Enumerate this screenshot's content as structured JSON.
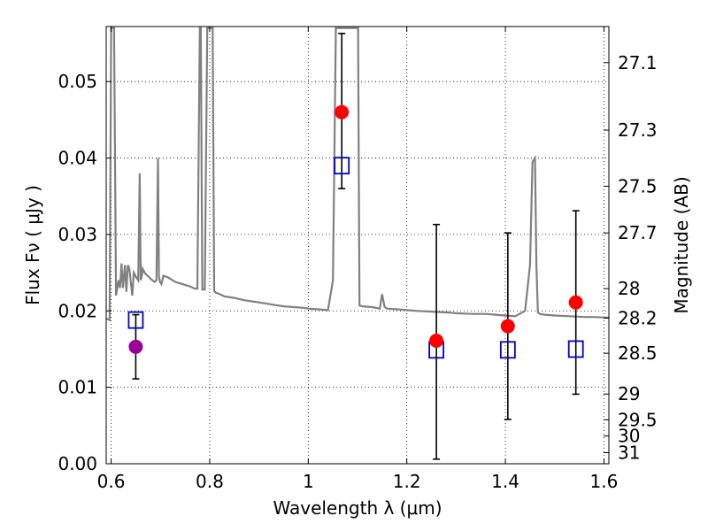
{
  "chart_data": {
    "type": "scatter",
    "xlabel": "Wavelength  λ (μm)",
    "ylabel": "Flux  Fν  ( μJy )",
    "y2label": "Magnitude (AB)",
    "xlim": [
      0.59,
      1.61
    ],
    "ylim": [
      0.0,
      0.0572
    ],
    "grid": true,
    "x_ticks": [
      0.6,
      0.8,
      1.0,
      1.2,
      1.4,
      1.6
    ],
    "x_tick_labels": [
      "0.6",
      "0.8",
      "1",
      "1.2",
      "1.4",
      "1.6"
    ],
    "y_ticks": [
      0.0,
      0.01,
      0.02,
      0.03,
      0.04,
      0.05
    ],
    "y_tick_labels": [
      "0.00",
      "0.01",
      "0.02",
      "0.03",
      "0.04",
      "0.05"
    ],
    "mag_ticks": [
      27.1,
      27.3,
      27.5,
      27.7,
      28.0,
      28.2,
      28.5,
      29.0,
      29.5,
      30.0,
      31.0
    ],
    "mag_tick_labels": [
      "27.1",
      "27.3",
      "27.5",
      "27.7",
      "28",
      "28.2",
      "28.5",
      "29",
      "29.5",
      "30",
      "31"
    ],
    "colors": {
      "model": "#808080",
      "observed": "#ff0000",
      "limit": "#990099",
      "model_flux": "#0000cc",
      "errorbar": "#000000"
    },
    "model_spectrum": {
      "x": [
        0.59,
        0.597,
        0.6,
        0.603,
        0.606,
        0.61,
        0.615,
        0.618,
        0.621,
        0.624,
        0.628,
        0.631,
        0.634,
        0.637,
        0.64,
        0.643,
        0.646,
        0.65,
        0.655,
        0.658,
        0.66,
        0.662,
        0.664,
        0.668,
        0.672,
        0.676,
        0.68,
        0.684,
        0.688,
        0.692,
        0.695,
        0.697,
        0.699,
        0.702,
        0.706,
        0.71,
        0.715,
        0.72,
        0.73,
        0.74,
        0.75,
        0.76,
        0.77,
        0.775,
        0.78,
        0.782,
        0.785,
        0.79,
        0.795,
        0.8,
        0.803,
        0.806,
        0.809,
        0.812,
        0.82,
        0.83,
        0.85,
        0.87,
        0.89,
        0.91,
        0.93,
        0.95,
        0.97,
        0.99,
        1.0,
        1.02,
        1.04,
        1.05,
        1.056,
        1.062,
        1.068,
        1.074,
        1.08,
        1.086,
        1.092,
        1.098,
        1.101,
        1.104,
        1.11,
        1.13,
        1.145,
        1.15,
        1.155,
        1.16,
        1.18,
        1.2,
        1.22,
        1.25,
        1.28,
        1.3,
        1.33,
        1.36,
        1.38,
        1.4,
        1.42,
        1.44,
        1.45,
        1.455,
        1.46,
        1.463,
        1.466,
        1.47,
        1.48,
        1.5,
        1.53,
        1.56,
        1.58,
        1.61
      ],
      "y": [
        0.019,
        0.0188,
        0.057,
        0.057,
        0.057,
        0.022,
        0.024,
        0.023,
        0.0262,
        0.023,
        0.026,
        0.0225,
        0.026,
        0.0255,
        0.0238,
        0.022,
        0.025,
        0.0245,
        0.024,
        0.038,
        0.024,
        0.0245,
        0.0255,
        0.025,
        0.0247,
        0.0245,
        0.0242,
        0.024,
        0.0238,
        0.024,
        0.04,
        0.0245,
        0.0238,
        0.0235,
        0.0246,
        0.0245,
        0.0244,
        0.0242,
        0.0238,
        0.0236,
        0.0234,
        0.0232,
        0.0229,
        0.0229,
        0.057,
        0.057,
        0.0228,
        0.0228,
        0.057,
        0.057,
        0.057,
        0.057,
        0.0226,
        0.0224,
        0.0222,
        0.0219,
        0.0217,
        0.0214,
        0.0212,
        0.021,
        0.0208,
        0.0206,
        0.0205,
        0.0204,
        0.0203,
        0.0202,
        0.0201,
        0.024,
        0.057,
        0.057,
        0.057,
        0.057,
        0.057,
        0.057,
        0.057,
        0.057,
        0.057,
        0.0207,
        0.0206,
        0.0205,
        0.0203,
        0.0222,
        0.0205,
        0.0203,
        0.0202,
        0.0201,
        0.02,
        0.0199,
        0.0198,
        0.0197,
        0.0196,
        0.0196,
        0.0195,
        0.0194,
        0.0193,
        0.02,
        0.026,
        0.0395,
        0.04,
        0.026,
        0.0198,
        0.0196,
        0.0195,
        0.0194,
        0.0193,
        0.0192,
        0.0192,
        0.0191
      ]
    },
    "observed": [
      {
        "x": 1.068,
        "y": 0.046,
        "yerr_low": 0.036,
        "yerr_high": 0.0563
      },
      {
        "x": 1.26,
        "y": 0.0161,
        "yerr_low": 0.0006,
        "yerr_high": 0.0313
      },
      {
        "x": 1.405,
        "y": 0.018,
        "yerr_low": 0.0058,
        "yerr_high": 0.0302
      },
      {
        "x": 1.543,
        "y": 0.0211,
        "yerr_low": 0.0091,
        "yerr_high": 0.0331
      }
    ],
    "limit": [
      {
        "x": 0.65,
        "y": 0.0153,
        "yerr_low": 0.0111,
        "yerr_high": 0.0195
      }
    ],
    "model_flux": [
      {
        "x": 0.65,
        "y": 0.0188
      },
      {
        "x": 1.068,
        "y": 0.039
      },
      {
        "x": 1.26,
        "y": 0.0149
      },
      {
        "x": 1.405,
        "y": 0.0149
      },
      {
        "x": 1.543,
        "y": 0.015
      }
    ]
  }
}
